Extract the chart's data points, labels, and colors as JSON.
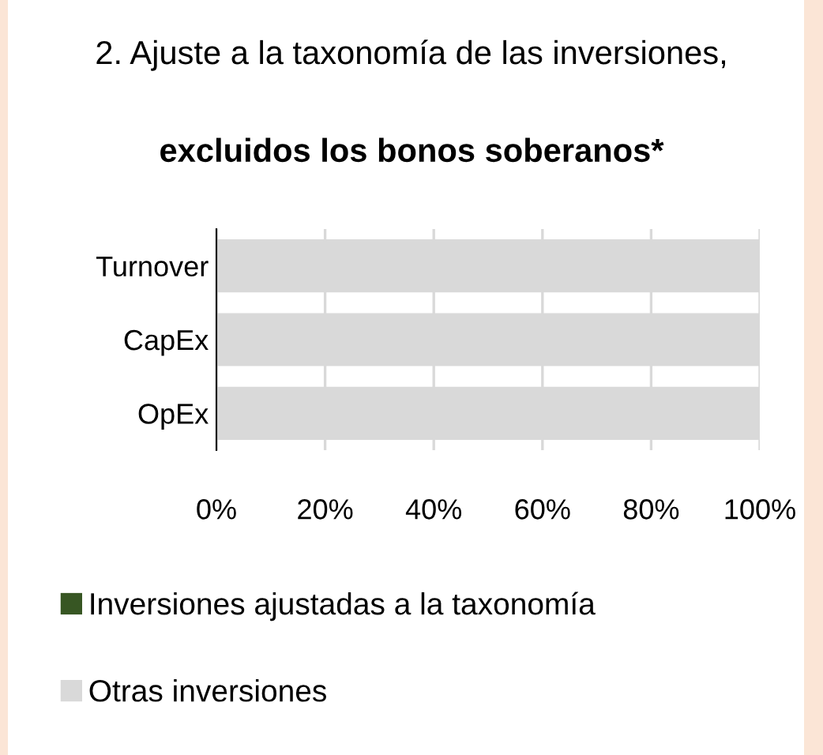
{
  "chart_data": {
    "type": "bar",
    "orientation": "horizontal",
    "stacked": true,
    "title": "2. Ajuste a la taxonomía de las inversiones,",
    "subtitle": "excluidos los bonos soberanos*",
    "categories": [
      "Turnover",
      "CapEx",
      "OpEx"
    ],
    "series": [
      {
        "name": "Inversiones ajustadas a la taxonomía",
        "color": "#375623",
        "values": [
          0,
          0,
          0
        ]
      },
      {
        "name": "Otras inversiones",
        "color": "#d9d9d9",
        "values": [
          100,
          100,
          100
        ]
      }
    ],
    "xlim": [
      0,
      100
    ],
    "xticks": [
      {
        "value": 0,
        "label": "0%"
      },
      {
        "value": 20,
        "label": "20%"
      },
      {
        "value": 40,
        "label": "40%"
      },
      {
        "value": 60,
        "label": "60%"
      },
      {
        "value": 80,
        "label": "80%"
      },
      {
        "value": 100,
        "label": "100%"
      }
    ],
    "grid": "x",
    "legend": "bottom"
  }
}
